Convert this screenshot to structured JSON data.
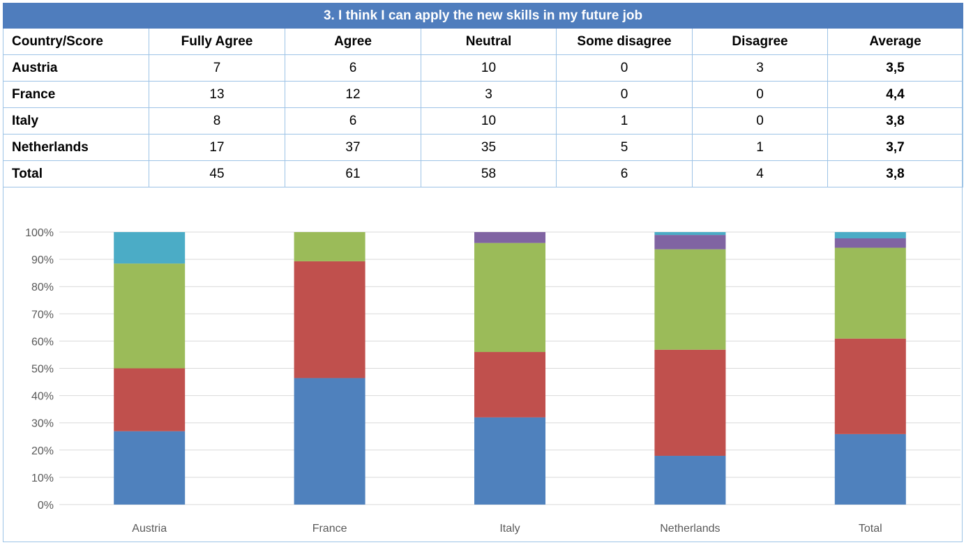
{
  "table": {
    "title": "3. I think I can apply the new skills in my future job",
    "headers": [
      "Country/Score",
      "Fully Agree",
      "Agree",
      "Neutral",
      "Some disagree",
      "Disagree",
      "Average"
    ],
    "rows": [
      {
        "country": "Austria",
        "values": [
          "7",
          "6",
          "10",
          "0",
          "3"
        ],
        "average": "3,5"
      },
      {
        "country": "France",
        "values": [
          "13",
          "12",
          "3",
          "0",
          "0"
        ],
        "average": "4,4"
      },
      {
        "country": "Italy",
        "values": [
          "8",
          "6",
          "10",
          "1",
          "0"
        ],
        "average": "3,8"
      },
      {
        "country": "Netherlands",
        "values": [
          "17",
          "37",
          "35",
          "5",
          "1"
        ],
        "average": "3,7"
      },
      {
        "country": "Total",
        "values": [
          "45",
          "61",
          "58",
          "6",
          "4"
        ],
        "average": "3,8"
      }
    ]
  },
  "chart_data": {
    "type": "bar",
    "stacked": "percent",
    "categories": [
      "Austria",
      "France",
      "Italy",
      "Netherlands",
      "Total"
    ],
    "series": [
      {
        "values": [
          7,
          13,
          8,
          17,
          45
        ],
        "color": "#4f81bd"
      },
      {
        "values": [
          6,
          12,
          6,
          37,
          61
        ],
        "color": "#c0504d"
      },
      {
        "values": [
          10,
          3,
          10,
          35,
          58
        ],
        "color": "#9bbb59"
      },
      {
        "values": [
          0,
          0,
          1,
          5,
          6
        ],
        "color": "#8064a2"
      },
      {
        "values": [
          3,
          0,
          0,
          1,
          4
        ],
        "color": "#4bacc6"
      }
    ],
    "y_ticks": [
      "0%",
      "10%",
      "20%",
      "30%",
      "40%",
      "50%",
      "60%",
      "70%",
      "80%",
      "90%",
      "100%"
    ],
    "ylim": [
      0,
      100
    ],
    "grid": true,
    "legend": "none",
    "xlabel": "",
    "ylabel": ""
  }
}
